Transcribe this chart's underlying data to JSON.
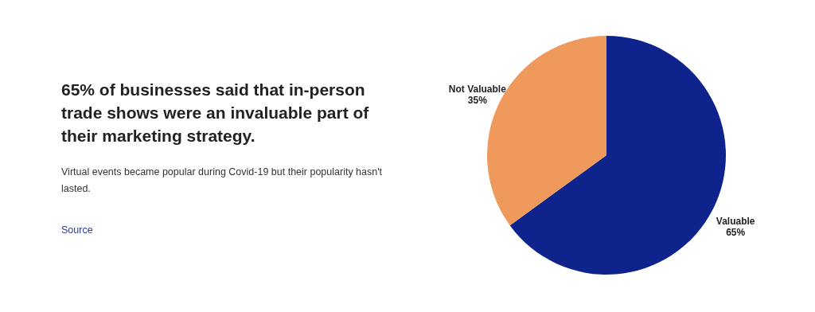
{
  "chart_data": {
    "type": "pie",
    "title": "65% of businesses said that in-person trade shows were an invaluable part of their marketing strategy.",
    "subtitle": "Virtual events became popular during Covid-19 but their popularity hasn't lasted.",
    "annotations": [
      "Source"
    ],
    "categories": [
      "Valuable",
      "Not Valuable"
    ],
    "values": [
      65,
      35
    ],
    "value_labels": [
      "65%",
      "35%"
    ],
    "colors": [
      "#0f238c",
      "#f0995c"
    ]
  }
}
